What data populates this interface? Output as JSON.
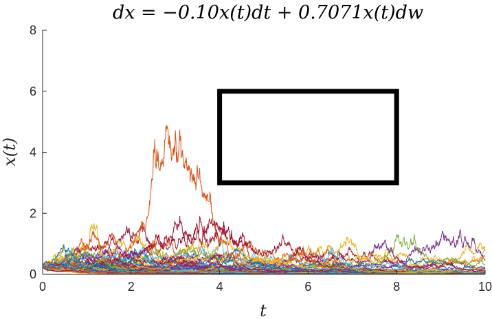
{
  "chart_data": {
    "type": "line",
    "title": "dx = −0.10x(t)dt + 0.7071x(t)dw",
    "xlabel": "t",
    "ylabel": "x(t)",
    "xlim": [
      0,
      10
    ],
    "ylim": [
      0,
      8
    ],
    "xticks": [
      0,
      2,
      4,
      6,
      8,
      10
    ],
    "yticks": [
      0,
      2,
      4,
      6,
      8
    ],
    "x0": 0.25,
    "drift": -0.1,
    "volatility": 0.7071,
    "num_paths": 100,
    "num_steps": 1400,
    "grid": false,
    "legend": "none",
    "series_colors": [
      "#0072BD",
      "#D95319",
      "#EDB120",
      "#7E2F8E",
      "#77AC30",
      "#4DBEEE",
      "#A2142F"
    ],
    "annotation_box": {
      "x": [
        4,
        8
      ],
      "y": [
        3,
        6
      ],
      "color": "#000000"
    }
  }
}
